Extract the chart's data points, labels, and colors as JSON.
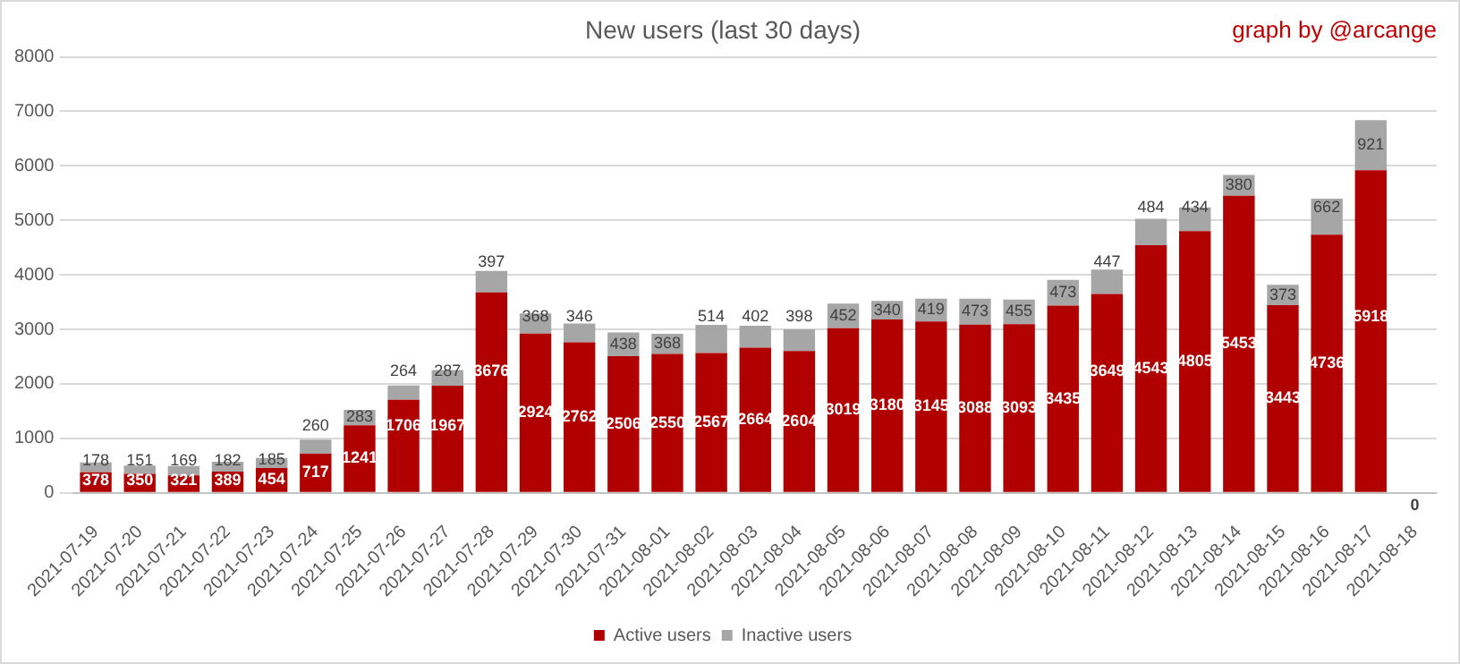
{
  "chart_data": {
    "type": "bar",
    "title": "New users (last 30 days)",
    "annotations": [
      "graph by @arcange"
    ],
    "categories": [
      "2021-07-19",
      "2021-07-20",
      "2021-07-21",
      "2021-07-22",
      "2021-07-23",
      "2021-07-24",
      "2021-07-25",
      "2021-07-26",
      "2021-07-27",
      "2021-07-28",
      "2021-07-29",
      "2021-07-30",
      "2021-07-31",
      "2021-08-01",
      "2021-08-02",
      "2021-08-03",
      "2021-08-04",
      "2021-08-05",
      "2021-08-06",
      "2021-08-07",
      "2021-08-08",
      "2021-08-09",
      "2021-08-10",
      "2021-08-11",
      "2021-08-12",
      "2021-08-13",
      "2021-08-14",
      "2021-08-15",
      "2021-08-16",
      "2021-08-17",
      "2021-08-18"
    ],
    "stacked": true,
    "series": [
      {
        "name": "Active users",
        "color": "#b00000",
        "values": [
          378,
          350,
          321,
          389,
          454,
          717,
          1241,
          1706,
          1967,
          3676,
          2924,
          2762,
          2506,
          2550,
          2567,
          2664,
          2604,
          3019,
          3180,
          3145,
          3088,
          3093,
          3435,
          3649,
          4543,
          4805,
          5453,
          3443,
          4736,
          5918,
          0
        ],
        "value_labels": [
          "378",
          "350",
          "321",
          "389",
          "454",
          "717",
          "1241",
          "1706",
          "1967",
          "3676",
          "2924",
          "2762",
          "2506",
          "2550",
          "2567",
          "2664",
          "2604",
          "3019",
          "3180",
          "3145",
          "3088",
          "3093",
          "3435",
          "3649",
          "4543",
          "4805",
          "5453",
          "3443",
          "4736",
          "5918",
          "0"
        ]
      },
      {
        "name": "Inactive users",
        "color": "#a6a6a6",
        "values": [
          178,
          151,
          169,
          182,
          185,
          260,
          283,
          264,
          287,
          397,
          368,
          346,
          438,
          368,
          514,
          402,
          398,
          452,
          340,
          419,
          473,
          455,
          473,
          447,
          484,
          434,
          380,
          373,
          662,
          921,
          0
        ],
        "value_labels": [
          "178",
          "151",
          "169",
          "182",
          "185",
          "260",
          "283",
          "264",
          "287",
          "397",
          "368",
          "346",
          "438",
          "368",
          "514",
          "402",
          "398",
          "452",
          "340",
          "419",
          "473",
          "455",
          "473",
          "447",
          "484",
          "434",
          "380",
          "373",
          "662",
          "921",
          null
        ]
      }
    ],
    "ylim": [
      0,
      8000
    ],
    "yticks": [
      0,
      1000,
      2000,
      3000,
      4000,
      5000,
      6000,
      7000,
      8000
    ],
    "grid": "y",
    "legend": "bottom"
  }
}
